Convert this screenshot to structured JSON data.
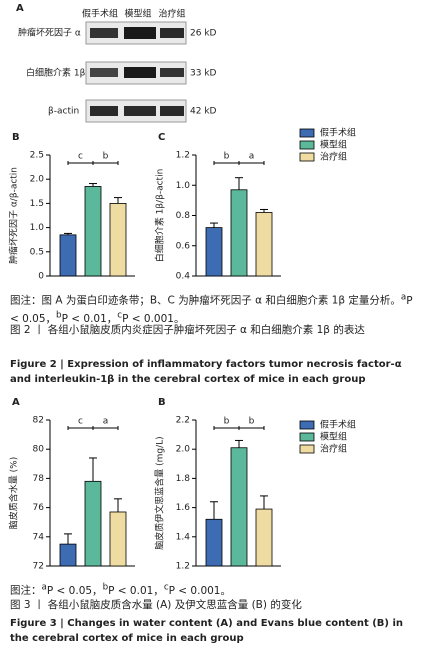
{
  "figure2": {
    "panel_a": {
      "label": "A",
      "groups": [
        "假手术组",
        "模型组",
        "治疗组"
      ],
      "rows": [
        {
          "name": "肿瘤坏死因子 α",
          "size": "26 kD"
        },
        {
          "name": "白细胞介素 1β",
          "size": "33 kD"
        },
        {
          "name": "β-actin",
          "size": "42 kD"
        }
      ]
    },
    "legend": [
      {
        "name": "假手术组",
        "color": "#3d6cb3"
      },
      {
        "name": "模型组",
        "color": "#5bb89a"
      },
      {
        "name": "治疗组",
        "color": "#efdca2"
      }
    ],
    "note": "图注：图 A 为蛋白印迹条带；B、C 为肿瘤坏死因子 α 和白细胞介素 1β 定量分析。",
    "sig_notes": [
      {
        "sup": "a",
        "text": "P < 0.05，"
      },
      {
        "sup": "b",
        "text": "P < 0.01，"
      },
      {
        "sup": "c",
        "text": "P < 0.001。"
      }
    ],
    "title_cn": "图 2 丨 各组小鼠脑皮质内炎症因子肿瘤坏死因子 α 和白细胞介素 1β 的表达",
    "title_en": "Figure 2 | Expression of inflammatory factors tumor necrosis factor-α and interleukin-1β in the cerebral cortex of mice in each group"
  },
  "figure3": {
    "legend": [
      {
        "name": "假手术组",
        "color": "#3d6cb3"
      },
      {
        "name": "模型组",
        "color": "#5bb89a"
      },
      {
        "name": "治疗组",
        "color": "#efdca2"
      }
    ],
    "note": "图注：",
    "sig_notes": [
      {
        "sup": "a",
        "text": "P < 0.05，"
      },
      {
        "sup": "b",
        "text": "P < 0.01，"
      },
      {
        "sup": "c",
        "text": "P < 0.001。"
      }
    ],
    "title_cn": "图 3 丨 各组小鼠脑皮质含水量 (A) 及伊文思蓝含量 (B) 的变化",
    "title_en": "Figure 3 | Changes in water content (A) and Evans blue content (B) in the cerebral cortex of mice in each group"
  },
  "chart_data": [
    {
      "type": "bar",
      "panel": "B",
      "ylabel": "肿瘤坏死因子 α/β-actin",
      "ylim": [
        0,
        2.5
      ],
      "yticks": [
        0,
        0.5,
        {
          "value": 1,
          "label": "1.0"
        },
        1.5,
        {
          "value": 2,
          "label": "2.0"
        },
        2.5
      ],
      "values": [
        0.85,
        1.85,
        1.5
      ],
      "errors": [
        0.03,
        0.06,
        0.12
      ],
      "significance_labels": [
        "c",
        "b"
      ]
    },
    {
      "type": "bar",
      "panel": "C",
      "ylabel": "白细胞介素 1β/β-actin",
      "ylim": [
        0.4,
        1.2
      ],
      "yticks": [
        0.4,
        0.6,
        0.8,
        {
          "value": 1,
          "label": "1.0"
        },
        1.2
      ],
      "values": [
        0.72,
        0.97,
        0.82
      ],
      "errors": [
        0.03,
        0.08,
        0.02
      ],
      "significance_labels": [
        "b",
        "a"
      ]
    },
    {
      "type": "bar",
      "panel": "A",
      "ylabel": "脑皮质含水量 (%)",
      "ylim": [
        72,
        82
      ],
      "yticks": [
        72,
        74,
        76,
        78,
        80,
        82
      ],
      "values": [
        73.5,
        77.8,
        75.7
      ],
      "errors": [
        0.7,
        1.6,
        0.9
      ],
      "significance_labels": [
        "c",
        "a"
      ]
    },
    {
      "type": "bar",
      "panel": "B",
      "ylabel": "脑皮质伊文思蓝含量 (mg/L)",
      "ylim": [
        1.2,
        2.2
      ],
      "yticks": [
        1.2,
        1.4,
        1.6,
        1.8,
        {
          "value": 2,
          "label": "2.0"
        },
        2.2
      ],
      "values": [
        1.52,
        2.01,
        1.59
      ],
      "errors": [
        0.12,
        0.05,
        0.09
      ],
      "significance_labels": [
        "b",
        "b"
      ]
    }
  ]
}
